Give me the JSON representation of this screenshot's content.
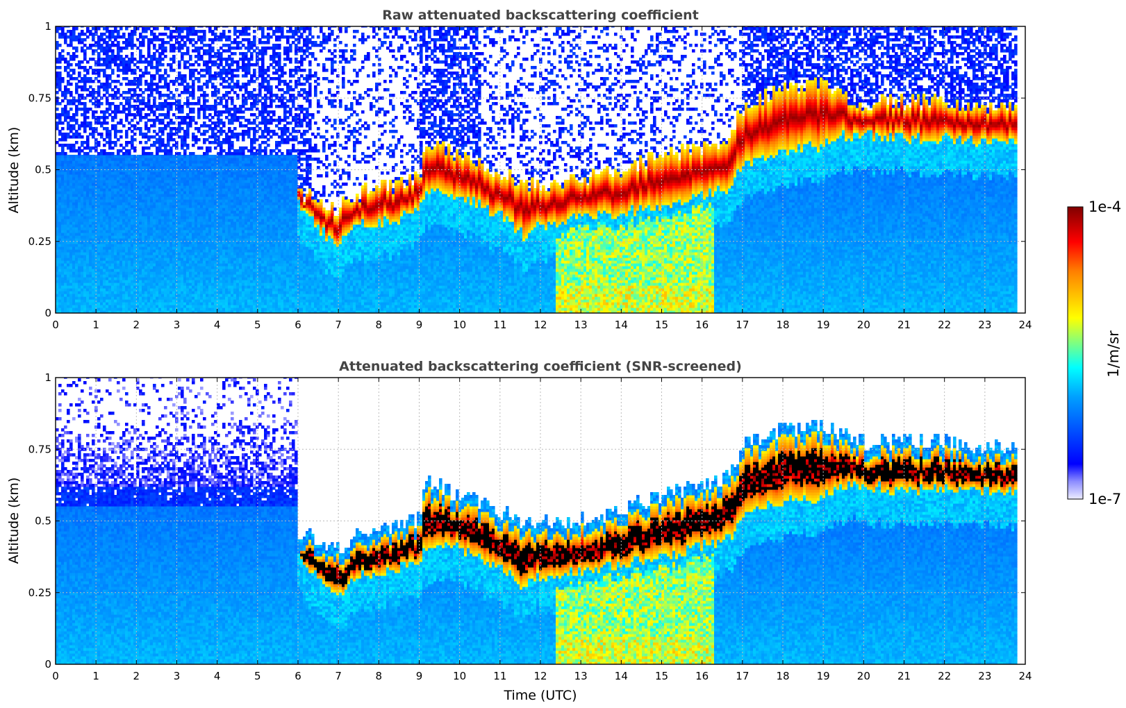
{
  "chart_data": {
    "type": "heatmap",
    "colorbar": {
      "label": "1/m/sr",
      "max_label": "1e-4",
      "min_label": "1e-7",
      "scale": "log",
      "range": [
        1e-07,
        0.0001
      ],
      "colormap": "jet"
    },
    "panels": [
      {
        "id": "raw",
        "title": "Raw attenuated backscattering coefficient",
        "xlabel": "",
        "ylabel": "Altitude (km)",
        "xlim": [
          0,
          24
        ],
        "ylim": [
          0,
          1
        ],
        "xticks": [
          "0",
          "1",
          "2",
          "3",
          "4",
          "5",
          "6",
          "7",
          "8",
          "9",
          "10",
          "11",
          "12",
          "13",
          "14",
          "15",
          "16",
          "17",
          "18",
          "19",
          "20",
          "21",
          "22",
          "23",
          "24"
        ],
        "yticks": [
          "0",
          "0.25",
          "0.5",
          "0.75",
          "1"
        ],
        "screened": false
      },
      {
        "id": "screened",
        "title": "Attenuated backscattering coefficient (SNR-screened)",
        "xlabel": "Time (UTC)",
        "ylabel": "Altitude (km)",
        "xlim": [
          0,
          24
        ],
        "ylim": [
          0,
          1
        ],
        "xticks": [
          "0",
          "1",
          "2",
          "3",
          "4",
          "5",
          "6",
          "7",
          "8",
          "9",
          "10",
          "11",
          "12",
          "13",
          "14",
          "15",
          "16",
          "17",
          "18",
          "19",
          "20",
          "21",
          "22",
          "23",
          "24"
        ],
        "yticks": [
          "0",
          "0.25",
          "0.5",
          "0.75",
          "1"
        ],
        "screened": true
      }
    ],
    "data_end_hour": 23.8,
    "cloud_base_km": {
      "hours": [
        6.0,
        6.5,
        7.0,
        7.5,
        8.0,
        8.5,
        9.0,
        9.2,
        10.0,
        11.0,
        11.6,
        12.0,
        13.0,
        14.0,
        15.0,
        16.0,
        16.7,
        17.0,
        18.0,
        19.0,
        19.5,
        20.0,
        21.0,
        22.0,
        23.0,
        23.8
      ],
      "base": [
        0.38,
        0.3,
        0.23,
        0.31,
        0.32,
        0.33,
        0.36,
        0.42,
        0.41,
        0.34,
        0.27,
        0.31,
        0.33,
        0.35,
        0.37,
        0.41,
        0.44,
        0.52,
        0.57,
        0.58,
        0.62,
        0.62,
        0.61,
        0.61,
        0.6,
        0.6
      ],
      "top": [
        0.42,
        0.4,
        0.36,
        0.42,
        0.44,
        0.44,
        0.47,
        0.6,
        0.55,
        0.49,
        0.45,
        0.45,
        0.47,
        0.5,
        0.55,
        0.58,
        0.62,
        0.72,
        0.78,
        0.8,
        0.76,
        0.73,
        0.74,
        0.74,
        0.72,
        0.72
      ]
    }
  }
}
